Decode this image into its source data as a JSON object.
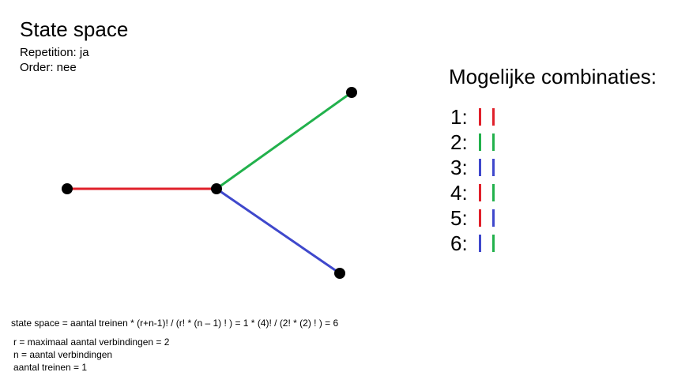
{
  "header": {
    "title": "State space",
    "repetition": "Repetition: ja",
    "order": "Order: nee"
  },
  "colors": {
    "red": "#e0202a",
    "green": "#22b14c",
    "blue": "#3f48cc",
    "node": "#000000"
  },
  "combinations": {
    "title": "Mogelijke combinaties:",
    "items": [
      {
        "label": "1:",
        "colors": [
          "red",
          "red"
        ]
      },
      {
        "label": "2:",
        "colors": [
          "green",
          "green"
        ]
      },
      {
        "label": "3:",
        "colors": [
          "blue",
          "blue"
        ]
      },
      {
        "label": "4:",
        "colors": [
          "red",
          "green"
        ]
      },
      {
        "label": "5:",
        "colors": [
          "red",
          "blue"
        ]
      },
      {
        "label": "6:",
        "colors": [
          "blue",
          "green"
        ]
      }
    ]
  },
  "formula": {
    "main": "state space = aantal treinen * (r+n-1)! / (r! * (n – 1) ! ) = 1 * (4)! / (2! * (2) ! ) = 6",
    "r_def": "r = maximaal aantal verbindingen = 2",
    "n_def": "n = aantal verbindingen",
    "treinen_def": "aantal treinen = 1"
  }
}
